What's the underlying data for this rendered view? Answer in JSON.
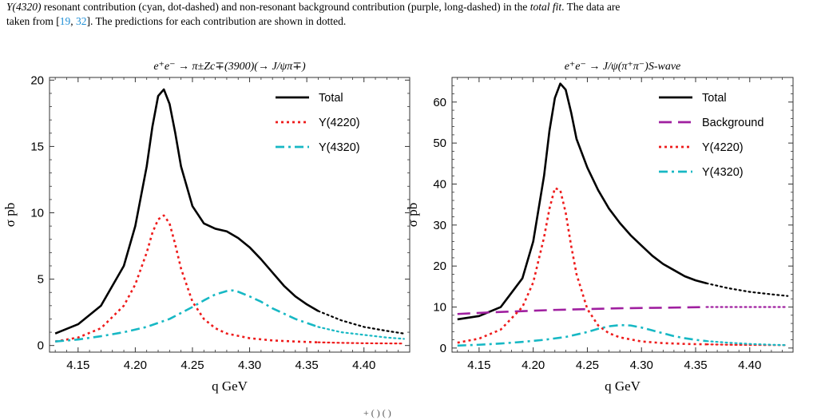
{
  "caption": {
    "line1_prefix": "Y(4320)",
    "line1_rest": " resonant contribution (cyan, dot-dashed) and non-resonant background contribution (purple, long-dashed) in the ",
    "line1_em": "total fit",
    "line1_end": ". The data are",
    "line2_prefix": "taken from [",
    "ref1": "19",
    "sep": ", ",
    "ref2": "32",
    "line2_end": "]. The predictions for each contribution are shown in dotted."
  },
  "bottom_fragment": "+ (  ) (   )",
  "colors": {
    "total": "#000000",
    "background": "#a020a0",
    "y4220": "#ee1c1c",
    "y4320": "#17b8c4"
  },
  "chart_data": [
    {
      "type": "line",
      "title": "e⁺e⁻ → π±Zc∓(3900)(→ J/ψπ∓)",
      "xlabel": "q GeV",
      "ylabel": "σ pb",
      "xlim": [
        4.125,
        4.44
      ],
      "ylim": [
        -0.5,
        20.2
      ],
      "xticks": [
        4.15,
        4.2,
        4.25,
        4.3,
        4.35,
        4.4
      ],
      "xtick_labels": [
        "4.15",
        "4.20",
        "4.25",
        "4.30",
        "4.35",
        "4.40"
      ],
      "yticks": [
        0,
        5,
        10,
        15,
        20
      ],
      "ytick_labels": [
        "0",
        "5",
        "10",
        "15",
        "20"
      ],
      "fit_end": 4.36,
      "legend_position": "top-right",
      "series": [
        {
          "name": "Total",
          "color_key": "total",
          "dash": "solid",
          "x": [
            4.13,
            4.15,
            4.17,
            4.19,
            4.2,
            4.21,
            4.215,
            4.22,
            4.225,
            4.23,
            4.235,
            4.24,
            4.25,
            4.26,
            4.27,
            4.28,
            4.29,
            4.3,
            4.31,
            4.32,
            4.33,
            4.34,
            4.35,
            4.36,
            4.38,
            4.4,
            4.42,
            4.435
          ],
          "y": [
            0.9,
            1.6,
            3.0,
            6.0,
            9.0,
            13.5,
            16.5,
            18.8,
            19.3,
            18.2,
            16.0,
            13.5,
            10.5,
            9.2,
            8.8,
            8.6,
            8.1,
            7.4,
            6.5,
            5.5,
            4.5,
            3.7,
            3.1,
            2.6,
            1.9,
            1.4,
            1.1,
            0.9
          ]
        },
        {
          "name": "Y(4220)",
          "color_key": "y4220",
          "dash": "dotted",
          "x": [
            4.13,
            4.15,
            4.17,
            4.19,
            4.2,
            4.21,
            4.215,
            4.22,
            4.225,
            4.23,
            4.235,
            4.24,
            4.25,
            4.26,
            4.27,
            4.28,
            4.3,
            4.32,
            4.34,
            4.36,
            4.38,
            4.4,
            4.435
          ],
          "y": [
            0.3,
            0.6,
            1.3,
            3.0,
            4.6,
            7.0,
            8.5,
            9.5,
            9.8,
            9.2,
            7.6,
            5.8,
            3.3,
            2.0,
            1.3,
            0.9,
            0.55,
            0.38,
            0.3,
            0.24,
            0.2,
            0.17,
            0.15
          ]
        },
        {
          "name": "Y(4320)",
          "color_key": "y4320",
          "dash": "dashdot",
          "x": [
            4.13,
            4.15,
            4.17,
            4.19,
            4.21,
            4.23,
            4.25,
            4.26,
            4.27,
            4.28,
            4.285,
            4.29,
            4.3,
            4.31,
            4.32,
            4.33,
            4.34,
            4.35,
            4.36,
            4.38,
            4.4,
            4.42,
            4.435
          ],
          "y": [
            0.3,
            0.45,
            0.7,
            1.0,
            1.4,
            2.0,
            2.9,
            3.4,
            3.85,
            4.1,
            4.15,
            4.05,
            3.7,
            3.3,
            2.8,
            2.4,
            2.0,
            1.7,
            1.4,
            1.0,
            0.8,
            0.6,
            0.5
          ]
        }
      ],
      "legend": [
        "Total",
        "Y(4220)",
        "Y(4320)"
      ]
    },
    {
      "type": "line",
      "title": "e⁺e⁻ → J/ψ(π⁺π⁻)S-wave",
      "xlabel": "q GeV",
      "ylabel": "σ pb",
      "xlim": [
        4.125,
        4.44
      ],
      "ylim": [
        -1,
        66
      ],
      "xticks": [
        4.15,
        4.2,
        4.25,
        4.3,
        4.35,
        4.4
      ],
      "xtick_labels": [
        "4.15",
        "4.20",
        "4.25",
        "4.30",
        "4.35",
        "4.40"
      ],
      "yticks": [
        0,
        10,
        20,
        30,
        40,
        50,
        60
      ],
      "ytick_labels": [
        "0",
        "10",
        "20",
        "30",
        "40",
        "50",
        "60"
      ],
      "fit_end": 4.36,
      "legend_position": "top-right",
      "series": [
        {
          "name": "Total",
          "color_key": "total",
          "dash": "solid",
          "x": [
            4.13,
            4.15,
            4.17,
            4.19,
            4.2,
            4.21,
            4.215,
            4.22,
            4.225,
            4.23,
            4.235,
            4.24,
            4.25,
            4.26,
            4.27,
            4.28,
            4.29,
            4.3,
            4.31,
            4.32,
            4.33,
            4.34,
            4.35,
            4.36,
            4.38,
            4.4,
            4.42,
            4.435
          ],
          "y": [
            7.0,
            7.8,
            10.0,
            17.0,
            26.0,
            42.0,
            53.0,
            61.0,
            64.5,
            63.0,
            57.5,
            51.0,
            44.0,
            38.5,
            34.0,
            30.5,
            27.5,
            25.0,
            22.5,
            20.5,
            19.0,
            17.5,
            16.5,
            15.8,
            14.6,
            13.7,
            13.1,
            12.7
          ]
        },
        {
          "name": "Background",
          "color_key": "background",
          "dash": "longdash",
          "x": [
            4.13,
            4.16,
            4.19,
            4.22,
            4.25,
            4.28,
            4.31,
            4.34,
            4.36,
            4.38,
            4.4,
            4.42,
            4.435
          ],
          "y": [
            8.3,
            8.7,
            9.0,
            9.3,
            9.5,
            9.7,
            9.8,
            9.9,
            10.0,
            10.0,
            10.0,
            10.0,
            10.0
          ]
        },
        {
          "name": "Y(4220)",
          "color_key": "y4220",
          "dash": "dotted",
          "x": [
            4.13,
            4.15,
            4.17,
            4.19,
            4.2,
            4.21,
            4.215,
            4.22,
            4.225,
            4.23,
            4.235,
            4.24,
            4.25,
            4.26,
            4.27,
            4.28,
            4.3,
            4.32,
            4.34,
            4.36,
            4.38,
            4.4,
            4.435
          ],
          "y": [
            1.3,
            2.3,
            4.5,
            10.0,
            16.0,
            27.0,
            34.0,
            39.0,
            38.5,
            33.0,
            25.0,
            18.0,
            9.5,
            5.5,
            3.6,
            2.6,
            1.6,
            1.2,
            1.0,
            0.9,
            0.8,
            0.75,
            0.7
          ]
        },
        {
          "name": "Y(4320)",
          "color_key": "y4320",
          "dash": "dashdot",
          "x": [
            4.13,
            4.15,
            4.17,
            4.19,
            4.21,
            4.23,
            4.25,
            4.26,
            4.27,
            4.28,
            4.29,
            4.3,
            4.31,
            4.32,
            4.33,
            4.34,
            4.35,
            4.36,
            4.38,
            4.4,
            4.42,
            4.435
          ],
          "y": [
            0.6,
            0.8,
            1.1,
            1.5,
            2.0,
            2.7,
            3.9,
            4.7,
            5.3,
            5.6,
            5.5,
            5.0,
            4.3,
            3.6,
            2.9,
            2.4,
            2.0,
            1.7,
            1.3,
            1.0,
            0.8,
            0.7
          ]
        }
      ],
      "legend": [
        "Total",
        "Background",
        "Y(4220)",
        "Y(4320)"
      ]
    }
  ]
}
